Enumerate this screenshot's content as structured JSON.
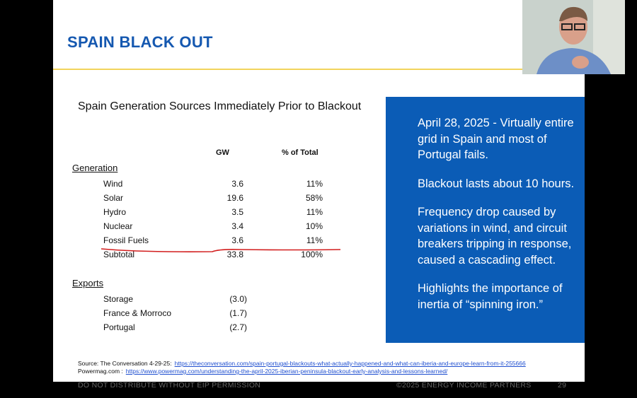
{
  "slide": {
    "title": "SPAIN BLACK OUT",
    "table": {
      "title": "Spain Generation Sources Immediately Prior to Blackout",
      "headers": [
        "GW",
        "% of Total"
      ],
      "sections": [
        {
          "name": "Generation",
          "rows": [
            [
              "Wind",
              "3.6",
              "11%"
            ],
            [
              "Solar",
              "19.6",
              "58%"
            ],
            [
              "Hydro",
              "3.5",
              "11%"
            ],
            [
              "Nuclear",
              "3.4",
              "10%"
            ],
            [
              "Fossil Fuels",
              "3.6",
              "11%"
            ],
            [
              "Subtotal",
              "33.8",
              "100%"
            ]
          ]
        },
        {
          "name": "Exports",
          "rows": [
            [
              "Storage",
              "(3.0)"
            ],
            [
              "France & Morroco",
              "(1.7)"
            ],
            [
              "Portugal",
              "(2.7)"
            ]
          ]
        }
      ]
    },
    "callout": [
      "April 28, 2025 - Virtually entire grid in Spain and most of Portugal fails.",
      "Blackout lasts about 10 hours.",
      "Frequency drop caused by variations in wind, and circuit breakers tripping in response, caused a cascading effect.",
      "Highlights the importance of inertia of “spinning iron.”"
    ],
    "sources": [
      {
        "label": "Source: The Conversation 4-29-25:",
        "url": "https://theconversation.com/spain-portugal-blackouts-what-actually-happened-and-what-can-iberia-and-europe-learn-from-it-255666"
      },
      {
        "label": "Powermag.com :",
        "url": "https://www.powermag.com/understanding-the-april-2025-iberian-peninsula-blackout-early-analysis-and-lessons-learned/"
      }
    ],
    "footer": {
      "left": "DO NOT DISTRIBUTE WITHOUT EIP PERMISSION",
      "center": "©2025 ENERGY INCOME PARTNERS",
      "page": "29"
    }
  }
}
